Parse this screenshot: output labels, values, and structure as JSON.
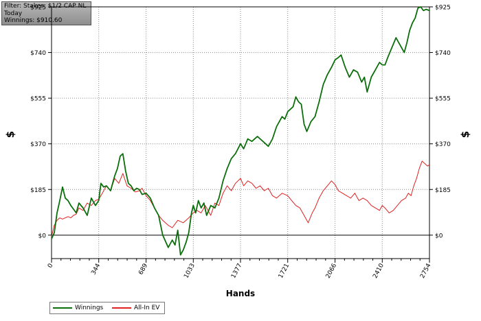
{
  "filter_box": {
    "line1": "Filter: Stakes: $1/2 CAP NL",
    "line2": "Today",
    "line3": "Winnings: $910.60"
  },
  "colors": {
    "winnings": "#0a6e0a",
    "allin_ev": "#e02020",
    "zero_line": "#000000",
    "grid": "#888888"
  },
  "legend": {
    "winnings": "Winnings",
    "allin_ev": "All-In EV"
  },
  "chart_data": {
    "type": "line",
    "xlabel": "Hands",
    "ylabel": "$",
    "xlim": [
      0,
      2754
    ],
    "ylim": [
      -95,
      925
    ],
    "x_ticks": [
      0,
      344,
      689,
      1033,
      1377,
      1721,
      2066,
      2410,
      2754
    ],
    "y_ticks": [
      0,
      185,
      370,
      555,
      740,
      925
    ],
    "y_tick_labels": [
      "$0",
      "$185",
      "$370",
      "$555",
      "$740",
      "$925"
    ],
    "grid": true,
    "legend_position": "bottom-left",
    "series": [
      {
        "name": "Winnings",
        "x": [
          0,
          20,
          40,
          60,
          80,
          100,
          120,
          140,
          160,
          180,
          200,
          230,
          260,
          290,
          320,
          344,
          360,
          380,
          400,
          430,
          460,
          480,
          500,
          520,
          540,
          560,
          580,
          600,
          620,
          640,
          660,
          689,
          720,
          750,
          780,
          810,
          850,
          880,
          900,
          920,
          940,
          960,
          980,
          1000,
          1020,
          1033,
          1050,
          1070,
          1090,
          1110,
          1130,
          1160,
          1190,
          1220,
          1250,
          1280,
          1310,
          1340,
          1377,
          1400,
          1430,
          1460,
          1500,
          1540,
          1580,
          1610,
          1640,
          1660,
          1680,
          1700,
          1721,
          1740,
          1760,
          1780,
          1800,
          1820,
          1840,
          1860,
          1890,
          1920,
          1950,
          1980,
          2010,
          2040,
          2066,
          2090,
          2110,
          2140,
          2170,
          2200,
          2230,
          2260,
          2280,
          2300,
          2330,
          2360,
          2390,
          2410,
          2430,
          2450,
          2480,
          2510,
          2540,
          2570,
          2590,
          2610,
          2630,
          2650,
          2670,
          2690,
          2710,
          2730,
          2754
        ],
        "y": [
          -15,
          10,
          90,
          140,
          195,
          150,
          140,
          120,
          105,
          90,
          130,
          110,
          80,
          150,
          120,
          140,
          210,
          195,
          200,
          180,
          240,
          270,
          320,
          330,
          260,
          210,
          200,
          180,
          190,
          185,
          165,
          170,
          150,
          110,
          80,
          0,
          -50,
          -20,
          -40,
          20,
          -80,
          -60,
          -30,
          10,
          90,
          120,
          90,
          140,
          110,
          130,
          80,
          120,
          110,
          150,
          220,
          270,
          310,
          330,
          370,
          350,
          390,
          380,
          400,
          380,
          360,
          390,
          440,
          460,
          480,
          470,
          500,
          510,
          520,
          560,
          540,
          530,
          450,
          420,
          460,
          480,
          540,
          610,
          650,
          680,
          710,
          720,
          730,
          680,
          640,
          670,
          660,
          620,
          640,
          580,
          640,
          670,
          700,
          690,
          690,
          720,
          760,
          800,
          770,
          740,
          780,
          830,
          860,
          880,
          920,
          925,
          910,
          915,
          910
        ]
      },
      {
        "name": "All-In EV",
        "x": [
          0,
          20,
          40,
          60,
          80,
          100,
          120,
          140,
          160,
          180,
          200,
          230,
          260,
          290,
          320,
          344,
          370,
          400,
          430,
          460,
          490,
          520,
          550,
          580,
          610,
          640,
          660,
          689,
          720,
          750,
          780,
          810,
          850,
          880,
          920,
          960,
          1000,
          1033,
          1060,
          1090,
          1120,
          1160,
          1190,
          1220,
          1250,
          1280,
          1310,
          1340,
          1377,
          1400,
          1430,
          1460,
          1490,
          1520,
          1550,
          1580,
          1610,
          1640,
          1680,
          1721,
          1750,
          1780,
          1810,
          1840,
          1870,
          1900,
          1920,
          1950,
          1980,
          2010,
          2040,
          2066,
          2090,
          2120,
          2150,
          2180,
          2210,
          2240,
          2270,
          2300,
          2330,
          2360,
          2390,
          2410,
          2430,
          2460,
          2490,
          2520,
          2550,
          2580,
          2600,
          2620,
          2640,
          2660,
          2680,
          2700,
          2720,
          2740,
          2754
        ],
        "y": [
          -5,
          40,
          60,
          70,
          65,
          70,
          75,
          70,
          80,
          85,
          110,
          100,
          130,
          120,
          140,
          145,
          170,
          200,
          180,
          230,
          210,
          250,
          200,
          190,
          175,
          180,
          190,
          160,
          140,
          110,
          80,
          60,
          40,
          30,
          60,
          50,
          70,
          90,
          100,
          90,
          120,
          80,
          130,
          120,
          170,
          200,
          180,
          210,
          230,
          200,
          220,
          210,
          190,
          200,
          180,
          190,
          160,
          150,
          170,
          160,
          140,
          120,
          110,
          80,
          50,
          90,
          110,
          150,
          180,
          200,
          220,
          205,
          180,
          170,
          160,
          150,
          170,
          140,
          150,
          140,
          120,
          110,
          100,
          120,
          110,
          90,
          100,
          120,
          140,
          150,
          170,
          160,
          200,
          230,
          270,
          300,
          290,
          280,
          285
        ]
      }
    ]
  }
}
